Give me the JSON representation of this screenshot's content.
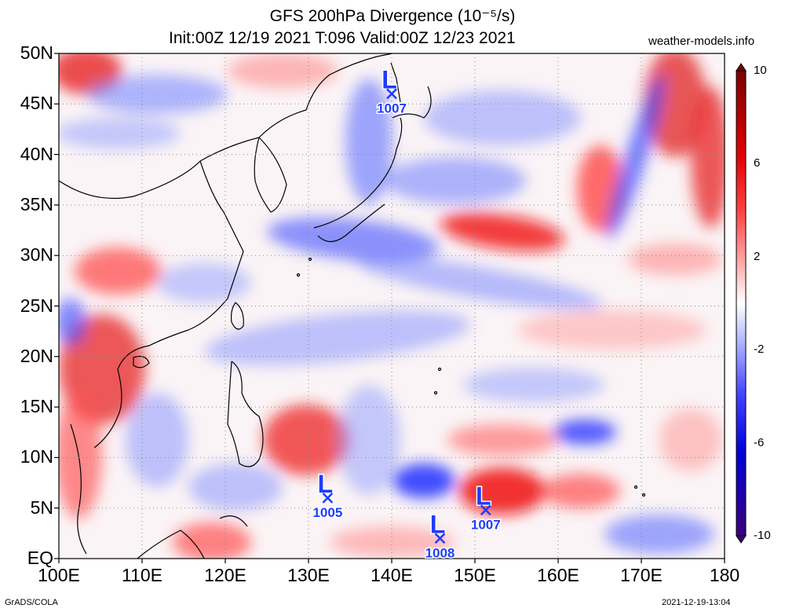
{
  "header": {
    "title_line1": "GFS 200hPa Divergence (10⁻⁵/s)",
    "title_line2": "Init:00Z 12/19 2021 T:096 Valid:00Z 12/23 2021",
    "site": "weather-models.info"
  },
  "axes": {
    "lat_labels": [
      "50N",
      "45N",
      "40N",
      "35N",
      "30N",
      "25N",
      "20N",
      "15N",
      "10N",
      "5N",
      "EQ"
    ],
    "lon_labels": [
      "100E",
      "110E",
      "120E",
      "130E",
      "140E",
      "150E",
      "160E",
      "170E",
      "180"
    ],
    "lat_range": [
      0,
      50
    ],
    "lon_range": [
      100,
      180
    ]
  },
  "colorbar": {
    "labels": [
      "10",
      "6",
      "2",
      "-2",
      "-6",
      "-10"
    ],
    "range": [
      -10,
      10
    ]
  },
  "lows": [
    {
      "letter": "L",
      "pressure": "1007",
      "lon": 140.0,
      "lat": 46.0
    },
    {
      "letter": "L",
      "pressure": "1005",
      "lon": 132.3,
      "lat": 6.0
    },
    {
      "letter": "L",
      "pressure": "1008",
      "lon": 145.8,
      "lat": 2.0
    },
    {
      "letter": "L",
      "pressure": "1007",
      "lon": 151.3,
      "lat": 4.8
    }
  ],
  "colors": {
    "low_marker": "#1f3cff",
    "divergence_positive": "#ff0000",
    "divergence_negative": "#0000ff"
  },
  "footer": {
    "left": "GrADS/COLA",
    "right": "2021-12-19-13:04"
  }
}
